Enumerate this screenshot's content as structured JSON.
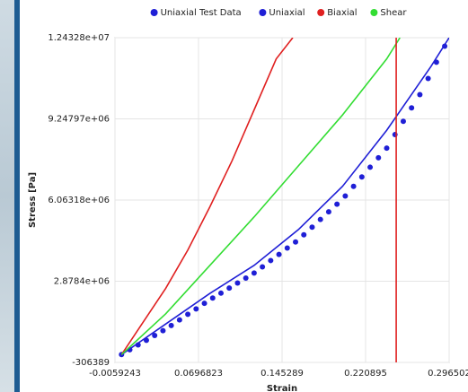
{
  "chart_data": {
    "type": "line",
    "x_label": "Strain",
    "y_label": "Stress [Pa]",
    "xlim": [
      -0.0059243,
      0.296502
    ],
    "ylim": [
      -306389,
      12432800
    ],
    "xticks": [
      -0.0059243,
      0.0696823,
      0.145289,
      0.220895,
      0.296502
    ],
    "yticks": [
      -306389,
      {
        "value": 2878400,
        "label": "2.8784e+06"
      },
      {
        "value": 6063180,
        "label": "6.06318e+06"
      },
      {
        "value": 9247970,
        "label": "9.24797e+06"
      },
      {
        "value": 12432800,
        "label": "1.24328e+07"
      }
    ],
    "grid": true,
    "legend": "top",
    "marker_x": 0.2486,
    "marker_x_color": "#e02020",
    "series": [
      {
        "name": "Uniaxial Test Data",
        "color": "#1f1fd6",
        "style": "markers",
        "x": [
          0,
          0.0075,
          0.015,
          0.0225,
          0.03,
          0.0375,
          0.045,
          0.0525,
          0.06,
          0.0675,
          0.075,
          0.0825,
          0.09,
          0.0975,
          0.105,
          0.1125,
          0.12,
          0.1275,
          0.135,
          0.1425,
          0.15,
          0.1575,
          0.165,
          0.1725,
          0.18,
          0.1875,
          0.195,
          0.2025,
          0.21,
          0.2175,
          0.225,
          0.2325,
          0.24,
          0.2475,
          0.255,
          0.2625,
          0.27,
          0.2775,
          0.285,
          0.2925
        ],
        "values": [
          0,
          190000,
          380000,
          560000,
          750000,
          940000,
          1140000,
          1360000,
          1580000,
          1790000,
          2010000,
          2220000,
          2410000,
          2610000,
          2810000,
          3000000,
          3200000,
          3440000,
          3690000,
          3930000,
          4180000,
          4420000,
          4700000,
          5000000,
          5300000,
          5600000,
          5900000,
          6220000,
          6600000,
          6970000,
          7350000,
          7720000,
          8100000,
          8630000,
          9150000,
          9680000,
          10200000,
          10830000,
          11470000,
          12100000
        ]
      },
      {
        "name": "Uniaxial",
        "color": "#1f1fd6",
        "style": "line",
        "x": [
          0,
          0.04,
          0.08,
          0.12,
          0.16,
          0.2,
          0.24,
          0.28,
          0.2965
        ],
        "values": [
          0,
          1200000,
          2400000,
          3500000,
          4900000,
          6600000,
          8800000,
          11300000,
          12432800
        ]
      },
      {
        "name": "Biaxial",
        "color": "#e02020",
        "style": "line",
        "x": [
          0,
          0.02,
          0.04,
          0.06,
          0.08,
          0.1,
          0.12,
          0.14,
          0.155
        ],
        "values": [
          0,
          1300000,
          2600000,
          4100000,
          5800000,
          7600000,
          9600000,
          11600000,
          12432800
        ]
      },
      {
        "name": "Shear",
        "color": "#33dd33",
        "style": "line",
        "x": [
          0,
          0.04,
          0.08,
          0.12,
          0.16,
          0.2,
          0.24,
          0.252
        ],
        "values": [
          0,
          1600000,
          3500000,
          5400000,
          7400000,
          9400000,
          11600000,
          12432800
        ]
      }
    ]
  }
}
